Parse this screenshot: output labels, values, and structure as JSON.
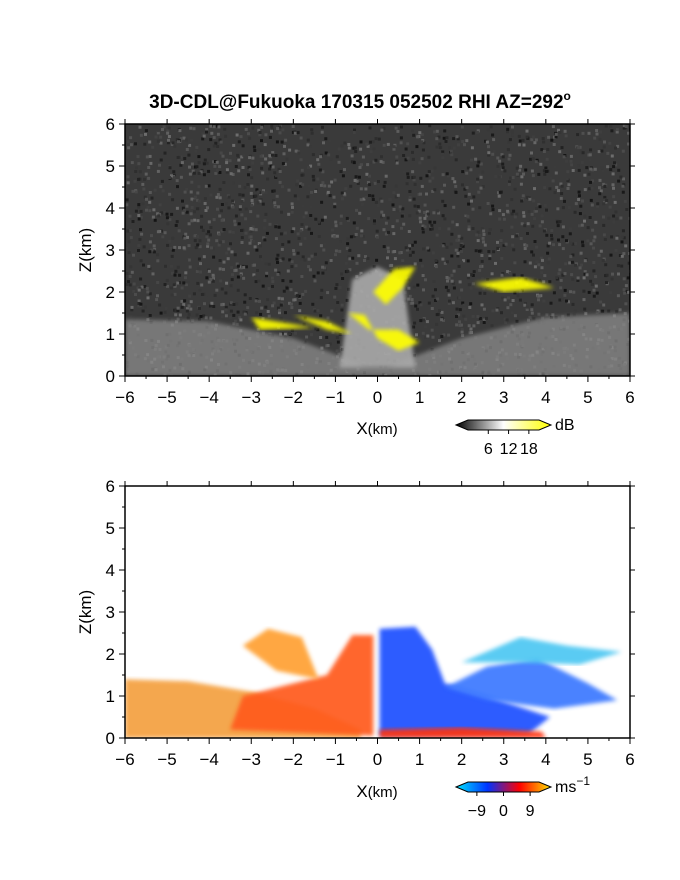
{
  "title": "3D-CDL@Fukuoka 170315 052502 RHI AZ=292",
  "title_degree_mark": "o",
  "chart_data": [
    {
      "type": "heatmap",
      "variable": "reflectivity",
      "xlabel_main": "X",
      "xlabel_unit": "(km)",
      "ylabel": "Z(km)",
      "xlim": [
        -6,
        6
      ],
      "ylim": [
        0,
        6
      ],
      "xticks": [
        "−6",
        "−5",
        "−4",
        "−3",
        "−2",
        "−1",
        "0",
        "1",
        "2",
        "3",
        "4",
        "5",
        "6"
      ],
      "yticks": [
        "0",
        "1",
        "2",
        "3",
        "4",
        "5",
        "6"
      ],
      "background_color": "#3a3a3a",
      "colorbar": {
        "unit": "dB",
        "ticks": [
          "6",
          "12",
          "18"
        ],
        "range": [
          0,
          21
        ],
        "colors": [
          "#000000",
          "#ffffff",
          "#ffff00"
        ]
      },
      "regions": [
        {
          "name": "low-elevation clutter fan",
          "color": "#8c8c8c",
          "points": [
            [
              -6,
              0
            ],
            [
              -6,
              1.35
            ],
            [
              -4,
              1.3
            ],
            [
              -2,
              0.9
            ],
            [
              -0.3,
              0.25
            ],
            [
              0.3,
              0.25
            ],
            [
              2,
              0.9
            ],
            [
              4,
              1.4
            ],
            [
              6,
              1.5
            ],
            [
              6,
              0
            ]
          ]
        },
        {
          "name": "upward beam spokes",
          "color": "#a8a8a8",
          "points": [
            [
              -0.9,
              0.2
            ],
            [
              -0.6,
              2.3
            ],
            [
              0,
              2.6
            ],
            [
              0.6,
              2.3
            ],
            [
              0.9,
              0.2
            ]
          ]
        },
        {
          "name": "yellow echo left spokes",
          "color": "#ffff00",
          "points": [
            [
              -2.0,
              1.45
            ],
            [
              -1.2,
              1.3
            ],
            [
              -0.6,
              1.0
            ],
            [
              -1.2,
              1.1
            ]
          ]
        },
        {
          "name": "yellow echo center",
          "color": "#ffff00",
          "points": [
            [
              -0.7,
              1.5
            ],
            [
              -0.3,
              1.45
            ],
            [
              0.0,
              0.9
            ],
            [
              0.5,
              0.6
            ],
            [
              1.0,
              0.8
            ],
            [
              0.5,
              1.1
            ],
            [
              -0.2,
              1.1
            ]
          ]
        },
        {
          "name": "yellow echo top",
          "color": "#ffff00",
          "points": [
            [
              -0.1,
              2.0
            ],
            [
              0.4,
              2.55
            ],
            [
              0.9,
              2.6
            ],
            [
              0.6,
              2.1
            ],
            [
              0.2,
              1.7
            ]
          ]
        },
        {
          "name": "yellow echo upper right",
          "color": "#ffff00",
          "points": [
            [
              2.3,
              2.2
            ],
            [
              3.4,
              2.35
            ],
            [
              4.2,
              2.1
            ],
            [
              3.0,
              2.0
            ]
          ]
        },
        {
          "name": "yellow echo low left",
          "color": "#ffff00",
          "points": [
            [
              -3.0,
              1.4
            ],
            [
              -2.1,
              1.25
            ],
            [
              -1.5,
              1.15
            ],
            [
              -2.8,
              1.1
            ]
          ]
        }
      ]
    },
    {
      "type": "heatmap",
      "variable": "doppler velocity",
      "xlabel_main": "X",
      "xlabel_unit": "(km)",
      "ylabel": "Z(km)",
      "xlim": [
        -6,
        6
      ],
      "ylim": [
        0,
        6
      ],
      "xticks": [
        "−6",
        "−5",
        "−4",
        "−3",
        "−2",
        "−1",
        "0",
        "1",
        "2",
        "3",
        "4",
        "5",
        "6"
      ],
      "yticks": [
        "0",
        "1",
        "2",
        "3",
        "4",
        "5",
        "6"
      ],
      "background_color": "#ffffff",
      "colorbar": {
        "unit": "ms",
        "unit_exponent": "−1",
        "ticks": [
          "−9",
          "0",
          "9"
        ],
        "range": [
          -12,
          12
        ],
        "colors": [
          "#00e5ff",
          "#0033ff",
          "#ff0000",
          "#ffe000"
        ]
      },
      "regions": [
        {
          "name": "outbound low layer left",
          "color": "#f4a040",
          "points": [
            [
              -6,
              0
            ],
            [
              -6,
              1.4
            ],
            [
              -4.5,
              1.35
            ],
            [
              -3,
              1.1
            ],
            [
              -1.5,
              0.7
            ],
            [
              -0.4,
              0.2
            ],
            [
              -0.4,
              0
            ]
          ]
        },
        {
          "name": "outbound core",
          "color": "#ff5a1e",
          "points": [
            [
              -3.5,
              0.2
            ],
            [
              -3.2,
              1.0
            ],
            [
              -2.2,
              1.25
            ],
            [
              -1.2,
              1.5
            ],
            [
              -0.6,
              2.45
            ],
            [
              -0.1,
              2.45
            ],
            [
              -0.1,
              0.05
            ]
          ]
        },
        {
          "name": "outbound spokes",
          "color": "#ffa030",
          "points": [
            [
              -3.2,
              2.2
            ],
            [
              -2.4,
              1.6
            ],
            [
              -1.4,
              1.4
            ],
            [
              -1.8,
              2.4
            ],
            [
              -2.6,
              2.6
            ]
          ]
        },
        {
          "name": "inbound core",
          "color": "#1a4fff",
          "points": [
            [
              0.05,
              0.05
            ],
            [
              0.05,
              2.6
            ],
            [
              0.9,
              2.65
            ],
            [
              1.3,
              2.1
            ],
            [
              1.6,
              1.3
            ],
            [
              2.6,
              1.0
            ],
            [
              4.1,
              0.5
            ],
            [
              3.6,
              0.1
            ]
          ]
        },
        {
          "name": "inbound fan",
          "color": "#3a78ff",
          "points": [
            [
              1.6,
              1.2
            ],
            [
              2.6,
              1.7
            ],
            [
              3.8,
              1.9
            ],
            [
              5.0,
              1.3
            ],
            [
              5.7,
              0.9
            ],
            [
              4.2,
              0.7
            ],
            [
              2.6,
              0.9
            ]
          ]
        },
        {
          "name": "inbound far spokes",
          "color": "#4ec7f2",
          "points": [
            [
              2.0,
              1.8
            ],
            [
              3.4,
              2.4
            ],
            [
              4.5,
              2.2
            ],
            [
              5.8,
              2.05
            ],
            [
              4.8,
              1.75
            ],
            [
              3.4,
              1.8
            ]
          ]
        },
        {
          "name": "near-ground strip",
          "color": "#ff3010",
          "points": [
            [
              0.05,
              0
            ],
            [
              0.05,
              0.2
            ],
            [
              2.0,
              0.25
            ],
            [
              3.9,
              0.15
            ],
            [
              4.0,
              0
            ]
          ]
        }
      ]
    }
  ]
}
